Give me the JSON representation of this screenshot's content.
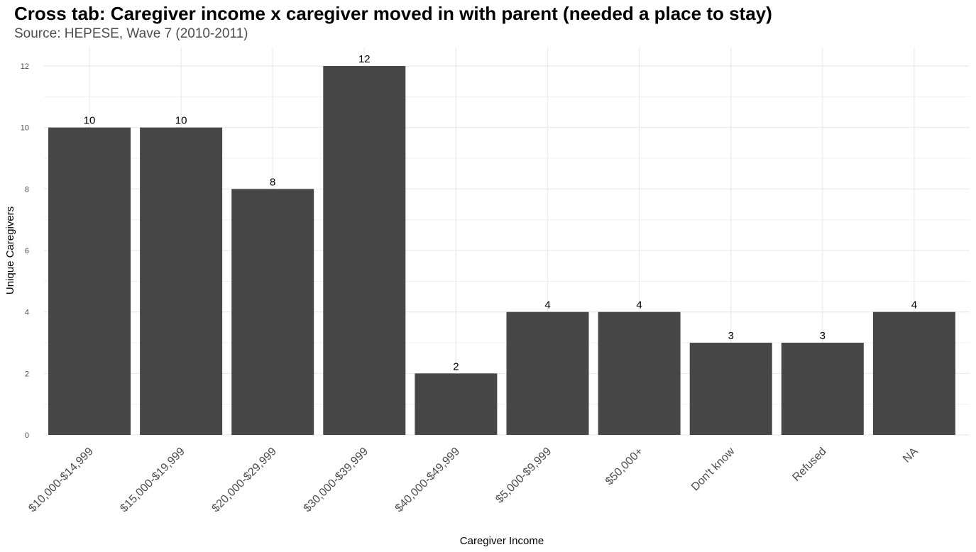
{
  "chart_data": {
    "type": "bar",
    "title": "Cross tab: Caregiver income x caregiver moved in with parent (needed a place to stay)",
    "subtitle": "Source: HEPESE, Wave 7 (2010-2011)",
    "xlabel": "Caregiver Income",
    "ylabel": "Unique Caregivers",
    "categories": [
      "$10,000-$14,999",
      "$15,000-$19,999",
      "$20,000-$29,999",
      "$30,000-$39,999",
      "$40,000-$49,999",
      "$5,000-$9,999",
      "$50,000+",
      "Don't know",
      "Refused",
      "NA"
    ],
    "values": [
      10,
      10,
      8,
      12,
      2,
      4,
      4,
      3,
      3,
      4
    ],
    "data_labels": [
      "10",
      "10",
      "8",
      "12",
      "2",
      "4",
      "4",
      "3",
      "3",
      "4"
    ],
    "yticks": [
      "0",
      "2",
      "4",
      "6",
      "8",
      "10",
      "12"
    ],
    "ylim": [
      0,
      12.6
    ],
    "grid": true,
    "legend": "none",
    "bar_color": "#474747",
    "grid_color": "#ebebeb"
  }
}
